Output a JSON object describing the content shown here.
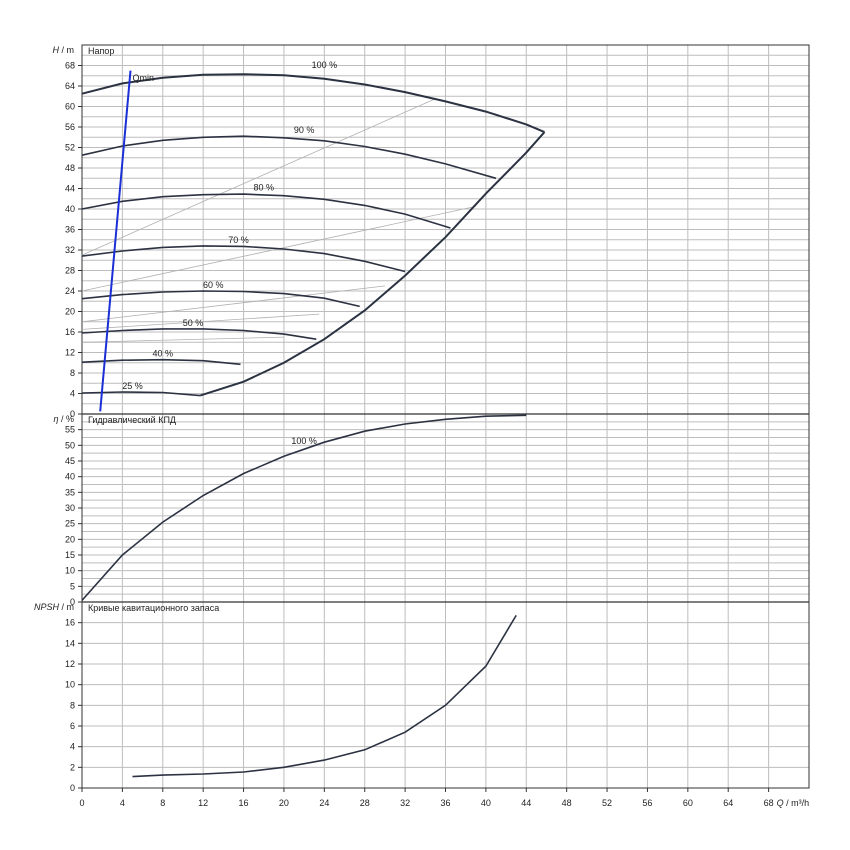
{
  "chart_data": {
    "type": "line",
    "x_axis": {
      "ticks": [
        0,
        4,
        8,
        12,
        16,
        20,
        24,
        28,
        32,
        36,
        40,
        44,
        48,
        52,
        56,
        60,
        64,
        68
      ],
      "label_q": "Q",
      "label_unit": "/ m³/h",
      "xlim": [
        0,
        72
      ]
    },
    "panels": [
      {
        "id": "head",
        "y_symbol": "H",
        "y_unit": "/ m",
        "title": "Напор",
        "ylim": [
          0,
          72
        ],
        "ticks": [
          0,
          4,
          8,
          12,
          16,
          20,
          24,
          28,
          32,
          36,
          40,
          44,
          48,
          52,
          56,
          60,
          64,
          68
        ],
        "series": [
          {
            "name": "100 %",
            "points": [
              [
                0,
                62.5
              ],
              [
                4,
                64.5
              ],
              [
                8,
                65.6
              ],
              [
                12,
                66.2
              ],
              [
                16,
                66.3
              ],
              [
                20,
                66.1
              ],
              [
                24,
                65.4
              ],
              [
                28,
                64.3
              ],
              [
                32,
                62.8
              ],
              [
                36,
                61
              ],
              [
                40,
                59
              ],
              [
                44,
                56.5
              ],
              [
                45.8,
                55
              ]
            ],
            "label_at": [
              24,
              67.5
            ]
          },
          {
            "name": "90 %",
            "points": [
              [
                0,
                50.5
              ],
              [
                4,
                52.3
              ],
              [
                8,
                53.4
              ],
              [
                12,
                54
              ],
              [
                16,
                54.2
              ],
              [
                20,
                53.9
              ],
              [
                24,
                53.3
              ],
              [
                28,
                52.2
              ],
              [
                32,
                50.7
              ],
              [
                36,
                48.8
              ],
              [
                41,
                46
              ]
            ],
            "label_at": [
              22,
              54.8
            ]
          },
          {
            "name": "80 %",
            "points": [
              [
                0,
                40
              ],
              [
                4,
                41.5
              ],
              [
                8,
                42.4
              ],
              [
                12,
                42.8
              ],
              [
                16,
                42.9
              ],
              [
                20,
                42.6
              ],
              [
                24,
                41.9
              ],
              [
                28,
                40.7
              ],
              [
                32,
                39
              ],
              [
                36.5,
                36.3
              ]
            ],
            "label_at": [
              18,
              43.6
            ]
          },
          {
            "name": "70 %",
            "points": [
              [
                0,
                30.8
              ],
              [
                4,
                31.8
              ],
              [
                8,
                32.5
              ],
              [
                12,
                32.8
              ],
              [
                16,
                32.7
              ],
              [
                20,
                32.2
              ],
              [
                24,
                31.3
              ],
              [
                28,
                29.8
              ],
              [
                32,
                27.8
              ]
            ],
            "label_at": [
              15.5,
              33.4
            ]
          },
          {
            "name": "60 %",
            "points": [
              [
                0,
                22.5
              ],
              [
                4,
                23.3
              ],
              [
                8,
                23.8
              ],
              [
                12,
                24
              ],
              [
                16,
                23.9
              ],
              [
                20,
                23.5
              ],
              [
                24,
                22.6
              ],
              [
                27.5,
                21
              ]
            ],
            "label_at": [
              13,
              24.6
            ]
          },
          {
            "name": "50 %",
            "points": [
              [
                0,
                15.8
              ],
              [
                4,
                16.3
              ],
              [
                8,
                16.6
              ],
              [
                12,
                16.6
              ],
              [
                16,
                16.3
              ],
              [
                20,
                15.6
              ],
              [
                23.2,
                14.6
              ]
            ],
            "label_at": [
              11,
              17.2
            ]
          },
          {
            "name": "40 %",
            "points": [
              [
                0,
                10.1
              ],
              [
                4,
                10.5
              ],
              [
                8,
                10.6
              ],
              [
                12,
                10.4
              ],
              [
                15.7,
                9.7
              ]
            ],
            "label_at": [
              8,
              11.2
            ]
          },
          {
            "name": "25 %",
            "points": [
              [
                0,
                4.1
              ],
              [
                4,
                4.3
              ],
              [
                8,
                4.2
              ],
              [
                11.7,
                3.6
              ]
            ],
            "label_at": [
              5,
              4.9
            ]
          }
        ],
        "max_curve": [
          [
            11.7,
            3.6
          ],
          [
            16,
            6.3
          ],
          [
            20,
            10
          ],
          [
            24,
            14.6
          ],
          [
            28,
            20.2
          ],
          [
            32,
            27
          ],
          [
            36,
            34.5
          ],
          [
            40,
            43
          ],
          [
            44,
            51
          ],
          [
            45.8,
            55
          ]
        ],
        "efficiency_lines": [
          [
            [
              0,
              31
            ],
            [
              35,
              61.5
            ]
          ],
          [
            [
              0,
              24
            ],
            [
              39,
              40.5
            ]
          ],
          [
            [
              0,
              18
            ],
            [
              30,
              25
            ]
          ],
          [
            [
              0,
              16.5
            ],
            [
              23.5,
              19.5
            ]
          ],
          [
            [
              0,
              14
            ],
            [
              20,
              15
            ]
          ]
        ],
        "qmin": {
          "label": "Qmin",
          "line": [
            [
              1.8,
              0.5
            ],
            [
              4.8,
              67
            ]
          ],
          "label_at": [
            5,
            65
          ]
        }
      },
      {
        "id": "efficiency",
        "y_symbol": "η",
        "y_unit": "/ %",
        "title": "Гидравлический КПД",
        "ylim": [
          0,
          60
        ],
        "ticks": [
          0,
          5,
          10,
          15,
          20,
          25,
          30,
          35,
          40,
          45,
          50,
          55
        ],
        "series": [
          {
            "name": "100 %",
            "points": [
              [
                0,
                0.5
              ],
              [
                4,
                15
              ],
              [
                8,
                25.5
              ],
              [
                12,
                34
              ],
              [
                16,
                41
              ],
              [
                20,
                46.5
              ],
              [
                24,
                51
              ],
              [
                28,
                54.5
              ],
              [
                32,
                56.8
              ],
              [
                36,
                58.3
              ],
              [
                40,
                59.3
              ],
              [
                44,
                59.6
              ]
            ],
            "label_at": [
              22,
              50.5
            ]
          }
        ]
      },
      {
        "id": "npsh",
        "y_symbol": "NPSH",
        "y_unit": "/ m",
        "title": "Кривые кавитационного запаса",
        "ylim": [
          0,
          18
        ],
        "ticks": [
          0,
          2,
          4,
          6,
          8,
          10,
          12,
          14,
          16
        ],
        "series": [
          {
            "name": "",
            "points": [
              [
                5,
                1.1
              ],
              [
                8,
                1.25
              ],
              [
                12,
                1.35
              ],
              [
                16,
                1.55
              ],
              [
                20,
                2
              ],
              [
                24,
                2.7
              ],
              [
                28,
                3.7
              ],
              [
                32,
                5.4
              ],
              [
                36,
                8
              ],
              [
                40,
                11.8
              ],
              [
                43,
                16.7
              ]
            ]
          }
        ]
      }
    ],
    "grid": true,
    "colors": {
      "curve": "#2b3242",
      "grid": "#bdbdbd",
      "qmin": "#1a2fd6",
      "efficiency_lines": "#b0b0b0"
    }
  }
}
